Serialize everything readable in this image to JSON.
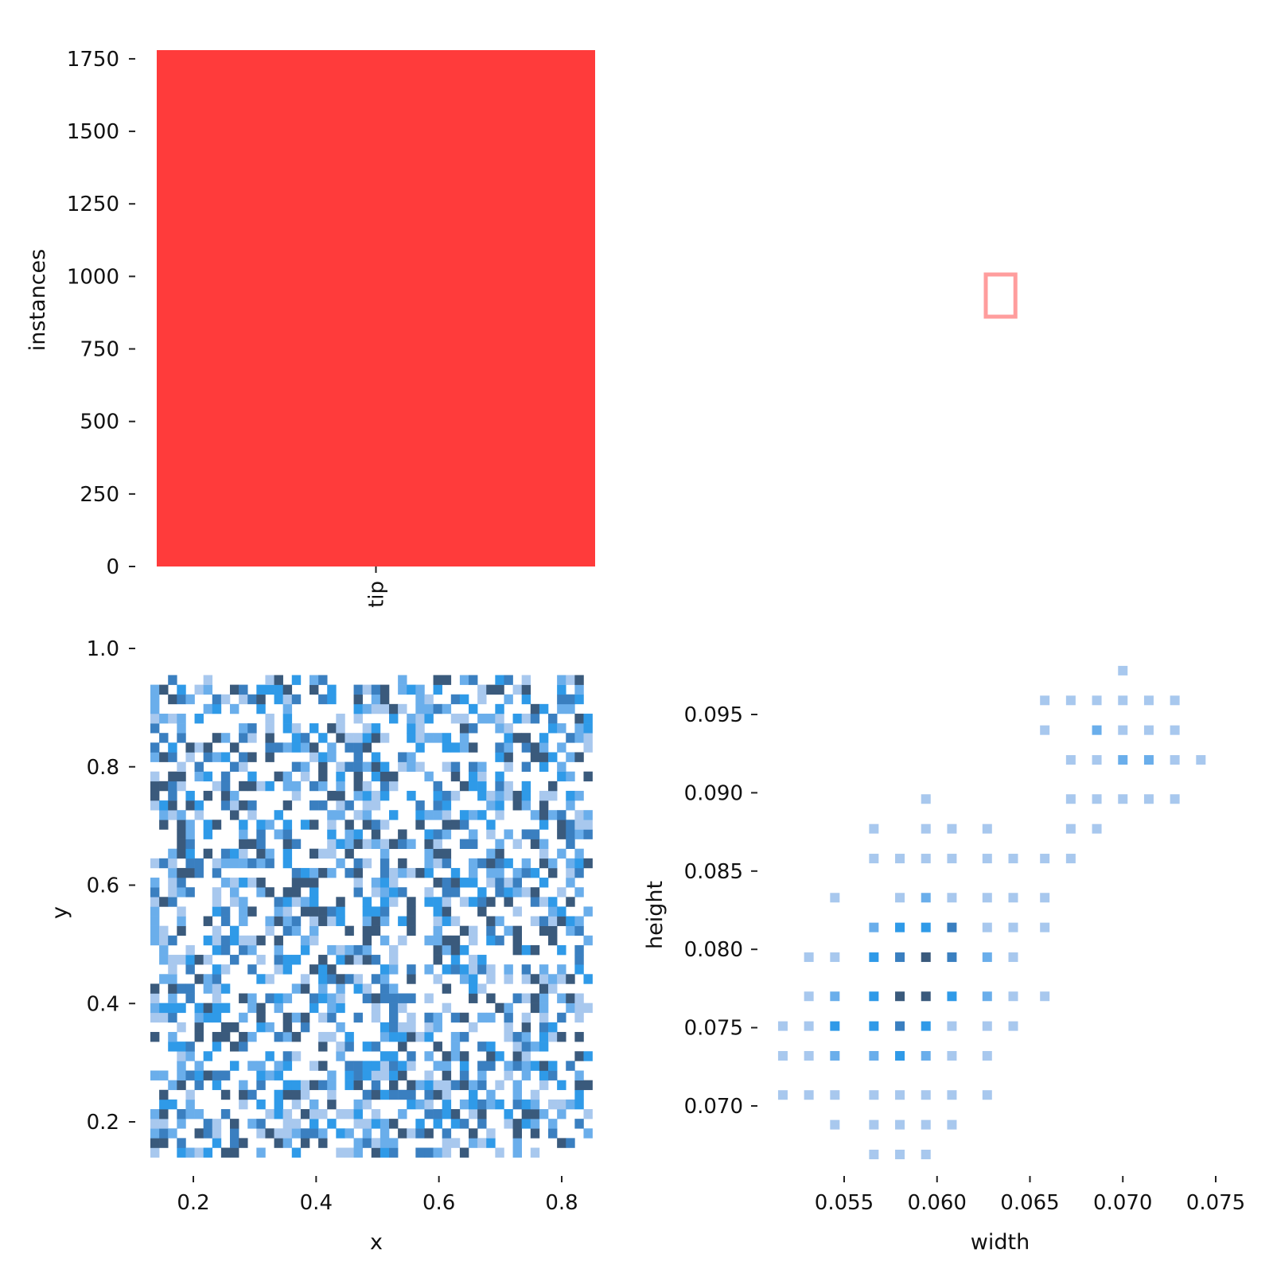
{
  "chart_data": [
    {
      "id": "class-counts",
      "type": "bar",
      "categories": [
        "tip"
      ],
      "values": [
        1780
      ],
      "title": "",
      "xlabel": "",
      "ylabel": "instances",
      "ylim": [
        0,
        1780
      ],
      "yticks": [
        0,
        250,
        500,
        750,
        1000,
        1250,
        1500,
        1750
      ],
      "bar_color": "#ff3b3b"
    },
    {
      "id": "box-shape",
      "type": "other",
      "title": "",
      "box_center": [
        0.5,
        0.5
      ],
      "box_size": [
        0.063,
        0.088
      ],
      "stroke_color": "#ff3b3b"
    },
    {
      "id": "xy-histogram",
      "type": "heatmap",
      "title": "",
      "xlabel": "x",
      "ylabel": "y",
      "xlim": [
        0.13,
        0.85
      ],
      "ylim": [
        0.13,
        1.0
      ],
      "xticks": [
        0.2,
        0.4,
        0.6,
        0.8
      ],
      "yticks": [
        0.2,
        0.4,
        0.6,
        0.8,
        1.0
      ],
      "xtick_labels": [
        "0.2",
        "0.4",
        "0.6",
        "0.8"
      ],
      "ytick_labels": [
        "0.2",
        "0.4",
        "0.6",
        "0.8",
        "1.0"
      ],
      "bins": [
        50,
        50
      ],
      "colors": [
        "#a8c8ee",
        "#6aaeeb",
        "#2f9ae8",
        "#3a7fc0",
        "#3a5a7c"
      ],
      "density": "roughly uniform, 1-5 counts per bin"
    },
    {
      "id": "wh-histogram",
      "type": "heatmap",
      "title": "",
      "xlabel": "width",
      "ylabel": "height",
      "xlim": [
        0.0505,
        0.0765
      ],
      "ylim": [
        0.0658,
        0.0989
      ],
      "xticks": [
        0.055,
        0.06,
        0.065,
        0.07,
        0.075
      ],
      "yticks": [
        0.07,
        0.075,
        0.08,
        0.085,
        0.09,
        0.095
      ],
      "xtick_labels": [
        "0.055",
        "0.060",
        "0.065",
        "0.070",
        "0.075"
      ],
      "ytick_labels": [
        "0.070",
        "0.075",
        "0.080",
        "0.085",
        "0.090",
        "0.095"
      ],
      "colors": [
        "#a8c8ee",
        "#6aaeeb",
        "#2f9ae8",
        "#3a7fc0",
        "#3a5a7c"
      ],
      "cells": [
        {
          "w": 0.07,
          "h": 0.0978,
          "c": 1
        },
        {
          "w": 0.0658,
          "h": 0.0959,
          "c": 1
        },
        {
          "w": 0.0672,
          "h": 0.0959,
          "c": 1
        },
        {
          "w": 0.0686,
          "h": 0.0959,
          "c": 1
        },
        {
          "w": 0.07,
          "h": 0.0959,
          "c": 1
        },
        {
          "w": 0.0714,
          "h": 0.0959,
          "c": 1
        },
        {
          "w": 0.0728,
          "h": 0.0959,
          "c": 1
        },
        {
          "w": 0.0658,
          "h": 0.094,
          "c": 1
        },
        {
          "w": 0.0686,
          "h": 0.094,
          "c": 2
        },
        {
          "w": 0.07,
          "h": 0.094,
          "c": 1
        },
        {
          "w": 0.0714,
          "h": 0.094,
          "c": 1
        },
        {
          "w": 0.0728,
          "h": 0.094,
          "c": 1
        },
        {
          "w": 0.0672,
          "h": 0.0921,
          "c": 1
        },
        {
          "w": 0.0686,
          "h": 0.0921,
          "c": 1
        },
        {
          "w": 0.07,
          "h": 0.0921,
          "c": 2
        },
        {
          "w": 0.0714,
          "h": 0.0921,
          "c": 2
        },
        {
          "w": 0.0728,
          "h": 0.0921,
          "c": 1
        },
        {
          "w": 0.0742,
          "h": 0.0921,
          "c": 1
        },
        {
          "w": 0.0672,
          "h": 0.0896,
          "c": 1
        },
        {
          "w": 0.0686,
          "h": 0.0896,
          "c": 1
        },
        {
          "w": 0.07,
          "h": 0.0896,
          "c": 1
        },
        {
          "w": 0.0714,
          "h": 0.0896,
          "c": 1
        },
        {
          "w": 0.0728,
          "h": 0.0896,
          "c": 1
        },
        {
          "w": 0.0594,
          "h": 0.0896,
          "c": 1
        },
        {
          "w": 0.0566,
          "h": 0.0877,
          "c": 1
        },
        {
          "w": 0.0594,
          "h": 0.0877,
          "c": 1
        },
        {
          "w": 0.0608,
          "h": 0.0877,
          "c": 1
        },
        {
          "w": 0.0627,
          "h": 0.0877,
          "c": 1
        },
        {
          "w": 0.0672,
          "h": 0.0877,
          "c": 1
        },
        {
          "w": 0.0686,
          "h": 0.0877,
          "c": 1
        },
        {
          "w": 0.0566,
          "h": 0.0858,
          "c": 1
        },
        {
          "w": 0.058,
          "h": 0.0858,
          "c": 1
        },
        {
          "w": 0.0594,
          "h": 0.0858,
          "c": 1
        },
        {
          "w": 0.0608,
          "h": 0.0858,
          "c": 1
        },
        {
          "w": 0.0627,
          "h": 0.0858,
          "c": 1
        },
        {
          "w": 0.0641,
          "h": 0.0858,
          "c": 1
        },
        {
          "w": 0.0658,
          "h": 0.0858,
          "c": 1
        },
        {
          "w": 0.0672,
          "h": 0.0858,
          "c": 1
        },
        {
          "w": 0.0545,
          "h": 0.0833,
          "c": 1
        },
        {
          "w": 0.058,
          "h": 0.0833,
          "c": 1
        },
        {
          "w": 0.0594,
          "h": 0.0833,
          "c": 2
        },
        {
          "w": 0.0608,
          "h": 0.0833,
          "c": 1
        },
        {
          "w": 0.0627,
          "h": 0.0833,
          "c": 1
        },
        {
          "w": 0.0641,
          "h": 0.0833,
          "c": 1
        },
        {
          "w": 0.0658,
          "h": 0.0833,
          "c": 1
        },
        {
          "w": 0.0566,
          "h": 0.0814,
          "c": 2
        },
        {
          "w": 0.058,
          "h": 0.0814,
          "c": 3
        },
        {
          "w": 0.0594,
          "h": 0.0814,
          "c": 3
        },
        {
          "w": 0.0608,
          "h": 0.0814,
          "c": 4
        },
        {
          "w": 0.0627,
          "h": 0.0814,
          "c": 1
        },
        {
          "w": 0.0641,
          "h": 0.0814,
          "c": 1
        },
        {
          "w": 0.0658,
          "h": 0.0814,
          "c": 1
        },
        {
          "w": 0.0531,
          "h": 0.0795,
          "c": 1
        },
        {
          "w": 0.0545,
          "h": 0.0795,
          "c": 1
        },
        {
          "w": 0.0566,
          "h": 0.0795,
          "c": 3
        },
        {
          "w": 0.058,
          "h": 0.0795,
          "c": 4
        },
        {
          "w": 0.0594,
          "h": 0.0795,
          "c": 5
        },
        {
          "w": 0.0608,
          "h": 0.0795,
          "c": 4
        },
        {
          "w": 0.0627,
          "h": 0.0795,
          "c": 2
        },
        {
          "w": 0.0641,
          "h": 0.0795,
          "c": 1
        },
        {
          "w": 0.0531,
          "h": 0.077,
          "c": 1
        },
        {
          "w": 0.0545,
          "h": 0.077,
          "c": 2
        },
        {
          "w": 0.0566,
          "h": 0.077,
          "c": 3
        },
        {
          "w": 0.058,
          "h": 0.077,
          "c": 5
        },
        {
          "w": 0.0594,
          "h": 0.077,
          "c": 5
        },
        {
          "w": 0.0608,
          "h": 0.077,
          "c": 3
        },
        {
          "w": 0.0627,
          "h": 0.077,
          "c": 2
        },
        {
          "w": 0.0641,
          "h": 0.077,
          "c": 1
        },
        {
          "w": 0.0658,
          "h": 0.077,
          "c": 1
        },
        {
          "w": 0.0517,
          "h": 0.0751,
          "c": 1
        },
        {
          "w": 0.0531,
          "h": 0.0751,
          "c": 1
        },
        {
          "w": 0.0545,
          "h": 0.0751,
          "c": 3
        },
        {
          "w": 0.0566,
          "h": 0.0751,
          "c": 3
        },
        {
          "w": 0.058,
          "h": 0.0751,
          "c": 4
        },
        {
          "w": 0.0594,
          "h": 0.0751,
          "c": 3
        },
        {
          "w": 0.0608,
          "h": 0.0751,
          "c": 1
        },
        {
          "w": 0.0627,
          "h": 0.0751,
          "c": 1
        },
        {
          "w": 0.0641,
          "h": 0.0751,
          "c": 1
        },
        {
          "w": 0.0517,
          "h": 0.0732,
          "c": 1
        },
        {
          "w": 0.0531,
          "h": 0.0732,
          "c": 1
        },
        {
          "w": 0.0545,
          "h": 0.0732,
          "c": 2
        },
        {
          "w": 0.0566,
          "h": 0.0732,
          "c": 2
        },
        {
          "w": 0.058,
          "h": 0.0732,
          "c": 3
        },
        {
          "w": 0.0594,
          "h": 0.0732,
          "c": 2
        },
        {
          "w": 0.0608,
          "h": 0.0732,
          "c": 1
        },
        {
          "w": 0.0627,
          "h": 0.0732,
          "c": 1
        },
        {
          "w": 0.0517,
          "h": 0.0707,
          "c": 1
        },
        {
          "w": 0.0531,
          "h": 0.0707,
          "c": 1
        },
        {
          "w": 0.0545,
          "h": 0.0707,
          "c": 1
        },
        {
          "w": 0.0566,
          "h": 0.0707,
          "c": 1
        },
        {
          "w": 0.058,
          "h": 0.0707,
          "c": 1
        },
        {
          "w": 0.0594,
          "h": 0.0707,
          "c": 1
        },
        {
          "w": 0.0608,
          "h": 0.0707,
          "c": 1
        },
        {
          "w": 0.0627,
          "h": 0.0707,
          "c": 1
        },
        {
          "w": 0.0545,
          "h": 0.0688,
          "c": 1
        },
        {
          "w": 0.0566,
          "h": 0.0688,
          "c": 1
        },
        {
          "w": 0.058,
          "h": 0.0688,
          "c": 1
        },
        {
          "w": 0.0594,
          "h": 0.0688,
          "c": 1
        },
        {
          "w": 0.0608,
          "h": 0.0688,
          "c": 1
        },
        {
          "w": 0.0566,
          "h": 0.0669,
          "c": 1
        },
        {
          "w": 0.058,
          "h": 0.0669,
          "c": 1
        },
        {
          "w": 0.0594,
          "h": 0.0669,
          "c": 1
        }
      ]
    }
  ]
}
